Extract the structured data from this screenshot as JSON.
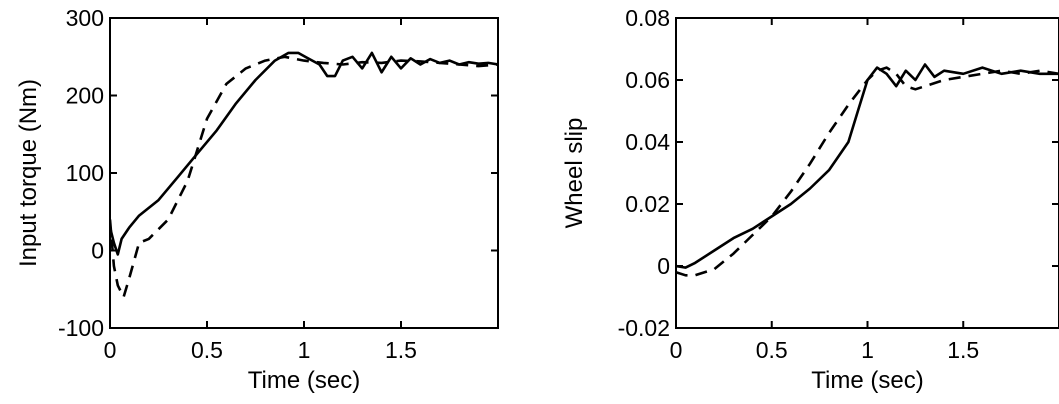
{
  "chart_data": [
    {
      "type": "line",
      "title": "",
      "xlabel": "Time (sec)",
      "ylabel": "Input torque (Nm)",
      "xlim": [
        0,
        2
      ],
      "ylim": [
        -100,
        300
      ],
      "xticks": [
        "0",
        "0.5",
        "1",
        "1.5"
      ],
      "xtick_values": [
        0,
        0.5,
        1,
        1.5
      ],
      "yticks": [
        "-100",
        "0",
        "100",
        "200",
        "300"
      ],
      "ytick_values": [
        -100,
        0,
        100,
        200,
        300
      ],
      "grid": false,
      "series": [
        {
          "style": "solid",
          "x": [
            0,
            0.02,
            0.04,
            0.06,
            0.1,
            0.15,
            0.25,
            0.35,
            0.45,
            0.55,
            0.65,
            0.75,
            0.85,
            0.92,
            0.97,
            1.02,
            1.08,
            1.12,
            1.16,
            1.2,
            1.25,
            1.3,
            1.35,
            1.4,
            1.45,
            1.5,
            1.55,
            1.6,
            1.65,
            1.7,
            1.75,
            1.8,
            1.85,
            1.9,
            1.95,
            2.0
          ],
          "y": [
            30,
            10,
            -5,
            15,
            30,
            45,
            65,
            95,
            125,
            155,
            190,
            220,
            245,
            255,
            255,
            248,
            240,
            225,
            225,
            245,
            250,
            235,
            255,
            230,
            250,
            235,
            248,
            240,
            247,
            242,
            245,
            240,
            243,
            241,
            242,
            240
          ]
        },
        {
          "style": "dashed",
          "x": [
            0,
            0.02,
            0.04,
            0.07,
            0.1,
            0.15,
            0.2,
            0.3,
            0.4,
            0.5,
            0.6,
            0.7,
            0.8,
            0.9,
            1.0,
            1.1,
            1.2,
            1.3,
            1.4,
            1.5,
            1.6,
            1.7,
            1.8,
            1.9,
            2.0
          ],
          "y": [
            40,
            -20,
            -45,
            -60,
            -35,
            10,
            15,
            40,
            90,
            170,
            215,
            235,
            245,
            250,
            245,
            242,
            240,
            243,
            242,
            245,
            244,
            242,
            240,
            238,
            240
          ]
        }
      ]
    },
    {
      "type": "line",
      "title": "",
      "xlabel": "Time (sec)",
      "ylabel": "Wheel slip",
      "xlim": [
        0,
        2
      ],
      "ylim": [
        -0.02,
        0.08
      ],
      "xticks": [
        "0",
        "0.5",
        "1",
        "1.5"
      ],
      "xtick_values": [
        0,
        0.5,
        1,
        1.5
      ],
      "yticks": [
        "-0.02",
        "0",
        "0.02",
        "0.04",
        "0.06",
        "0.08"
      ],
      "ytick_values": [
        -0.02,
        0,
        0.02,
        0.04,
        0.06,
        0.08
      ],
      "grid": false,
      "series": [
        {
          "style": "solid",
          "x": [
            0,
            0.05,
            0.1,
            0.2,
            0.3,
            0.4,
            0.5,
            0.6,
            0.7,
            0.8,
            0.9,
            0.95,
            1.0,
            1.05,
            1.1,
            1.15,
            1.2,
            1.25,
            1.3,
            1.35,
            1.4,
            1.5,
            1.6,
            1.7,
            1.8,
            1.9,
            2.0
          ],
          "y": [
            0,
            -0.0005,
            0.001,
            0.005,
            0.009,
            0.012,
            0.016,
            0.02,
            0.025,
            0.031,
            0.04,
            0.05,
            0.06,
            0.064,
            0.062,
            0.058,
            0.063,
            0.06,
            0.065,
            0.061,
            0.063,
            0.062,
            0.064,
            0.062,
            0.063,
            0.062,
            0.062
          ]
        },
        {
          "style": "dashed",
          "x": [
            0,
            0.05,
            0.1,
            0.2,
            0.3,
            0.4,
            0.5,
            0.6,
            0.7,
            0.8,
            0.9,
            1.0,
            1.05,
            1.1,
            1.15,
            1.2,
            1.25,
            1.3,
            1.4,
            1.5,
            1.6,
            1.7,
            1.8,
            1.9,
            2.0
          ],
          "y": [
            -0.002,
            -0.003,
            -0.003,
            -0.001,
            0.004,
            0.01,
            0.016,
            0.024,
            0.033,
            0.043,
            0.052,
            0.06,
            0.063,
            0.064,
            0.062,
            0.058,
            0.057,
            0.058,
            0.06,
            0.061,
            0.062,
            0.063,
            0.062,
            0.063,
            0.062
          ]
        }
      ]
    }
  ]
}
